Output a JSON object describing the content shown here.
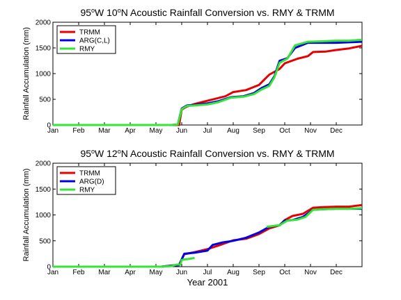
{
  "chart_data": [
    {
      "type": "line",
      "title": "95°W 10°N Acoustic Rainfall Conversion vs. RMY & TRMM",
      "xlabel": "",
      "ylabel": "Rainfall Accumulation (mm)",
      "x_ticks": [
        "Jan",
        "Feb",
        "Mar",
        "Apr",
        "May",
        "Jun",
        "Jul",
        "Aug",
        "Sep",
        "Oct",
        "Nov",
        "Dec"
      ],
      "ylim": [
        0,
        2000
      ],
      "y_ticks": [
        0,
        500,
        1000,
        1500,
        2000
      ],
      "legend_position": "top-left",
      "series": [
        {
          "name": "TRMM",
          "color": "#e60000",
          "points": [
            [
              0,
              0
            ],
            [
              4.6,
              0
            ],
            [
              4.9,
              0
            ],
            [
              5.0,
              300
            ],
            [
              5.2,
              360
            ],
            [
              5.5,
              410
            ],
            [
              5.9,
              460
            ],
            [
              6.3,
              510
            ],
            [
              6.7,
              560
            ],
            [
              7.0,
              640
            ],
            [
              7.5,
              680
            ],
            [
              8.0,
              780
            ],
            [
              8.4,
              980
            ],
            [
              8.8,
              1090
            ],
            [
              9.0,
              1200
            ],
            [
              9.5,
              1290
            ],
            [
              9.9,
              1340
            ],
            [
              10.1,
              1420
            ],
            [
              10.6,
              1430
            ],
            [
              11.0,
              1460
            ],
            [
              11.5,
              1490
            ],
            [
              12,
              1540
            ]
          ]
        },
        {
          "name": "ARG(C,L)",
          "color": "#0000e6",
          "points": [
            [
              0,
              0
            ],
            [
              4.6,
              0
            ],
            [
              4.85,
              10
            ],
            [
              5.0,
              320
            ],
            [
              5.2,
              380
            ],
            [
              5.5,
              390
            ],
            [
              6.0,
              420
            ],
            [
              6.4,
              460
            ],
            [
              6.9,
              540
            ],
            [
              7.4,
              560
            ],
            [
              7.8,
              620
            ],
            [
              8.1,
              720
            ],
            [
              8.4,
              790
            ],
            [
              8.6,
              950
            ],
            [
              8.8,
              1250
            ],
            [
              9.1,
              1300
            ],
            [
              9.4,
              1500
            ],
            [
              9.9,
              1600
            ],
            [
              10.5,
              1600
            ],
            [
              11.0,
              1600
            ],
            [
              11.5,
              1610
            ],
            [
              12,
              1620
            ]
          ]
        },
        {
          "name": "RMY",
          "color": "#33e633",
          "points": [
            [
              0,
              0
            ],
            [
              4.6,
              0
            ],
            [
              4.85,
              10
            ],
            [
              5.0,
              310
            ],
            [
              5.2,
              370
            ],
            [
              5.5,
              380
            ],
            [
              6.0,
              400
            ],
            [
              6.4,
              440
            ],
            [
              6.9,
              530
            ],
            [
              7.4,
              550
            ],
            [
              7.8,
              600
            ],
            [
              8.1,
              690
            ],
            [
              8.4,
              760
            ],
            [
              8.6,
              930
            ],
            [
              8.8,
              1210
            ],
            [
              9.1,
              1290
            ],
            [
              9.4,
              1550
            ],
            [
              9.9,
              1620
            ],
            [
              10.5,
              1630
            ],
            [
              11.0,
              1640
            ],
            [
              11.5,
              1640
            ],
            [
              12,
              1660
            ]
          ]
        }
      ]
    },
    {
      "type": "line",
      "title": "95°W 12°N Acoustic Rainfall Conversion vs. RMY & TRMM",
      "xlabel": "Year 2001",
      "ylabel": "Rainfall Accumulation (mm)",
      "x_ticks": [
        "Jan",
        "Feb",
        "Mar",
        "Apr",
        "May",
        "Jun",
        "Jul",
        "Aug",
        "Sep",
        "Oct",
        "Nov",
        "Dec"
      ],
      "ylim": [
        0,
        2000
      ],
      "y_ticks": [
        0,
        500,
        1000,
        1500,
        2000
      ],
      "legend_position": "top-left",
      "series": [
        {
          "name": "TRMM",
          "color": "#e60000",
          "points": [
            [
              0,
              0
            ],
            [
              4.2,
              0
            ],
            [
              4.6,
              20
            ],
            [
              4.9,
              40
            ],
            [
              5.1,
              240
            ],
            [
              5.5,
              280
            ],
            [
              6.0,
              340
            ],
            [
              6.5,
              420
            ],
            [
              7.0,
              510
            ],
            [
              7.5,
              540
            ],
            [
              8.0,
              630
            ],
            [
              8.4,
              740
            ],
            [
              8.8,
              800
            ],
            [
              9.0,
              900
            ],
            [
              9.3,
              980
            ],
            [
              9.7,
              1020
            ],
            [
              10.1,
              1140
            ],
            [
              10.5,
              1150
            ],
            [
              11.0,
              1160
            ],
            [
              11.5,
              1160
            ],
            [
              12,
              1190
            ]
          ]
        },
        {
          "name": "ARG(D)",
          "color": "#0000e6",
          "points": [
            [
              0,
              0
            ],
            [
              4.2,
              0
            ],
            [
              4.6,
              20
            ],
            [
              4.9,
              30
            ],
            [
              5.1,
              250
            ],
            [
              5.5,
              270
            ],
            [
              6.0,
              310
            ],
            [
              6.2,
              420
            ],
            [
              6.6,
              470
            ],
            [
              7.0,
              500
            ],
            [
              7.5,
              560
            ],
            [
              8.0,
              660
            ],
            [
              8.4,
              770
            ],
            [
              8.8,
              800
            ],
            [
              9.0,
              890
            ],
            [
              9.3,
              900
            ],
            [
              9.7,
              960
            ],
            [
              10.1,
              1100
            ],
            [
              10.5,
              1110
            ],
            [
              11.0,
              1120
            ],
            [
              11.5,
              1120
            ],
            [
              12,
              1120
            ]
          ]
        },
        {
          "name": "RMY",
          "color": "#33e633",
          "segments": [
            [
              [
                0,
                0
              ],
              [
                4.2,
                0
              ],
              [
                4.6,
                10
              ],
              [
                4.8,
                40
              ],
              [
                4.95,
                40
              ],
              [
                5.0,
                130
              ],
              [
                5.1,
                140
              ],
              [
                5.3,
                150
              ],
              [
                5.5,
                170
              ]
            ],
            [
              [
                8.3,
                770
              ],
              [
                8.6,
                790
              ],
              [
                8.8,
                800
              ],
              [
                9.1,
                890
              ],
              [
                9.5,
                910
              ],
              [
                9.8,
                960
              ],
              [
                10.1,
                1100
              ],
              [
                10.5,
                1110
              ],
              [
                11.0,
                1120
              ],
              [
                11.5,
                1120
              ],
              [
                12,
                1130
              ]
            ]
          ]
        }
      ]
    }
  ]
}
